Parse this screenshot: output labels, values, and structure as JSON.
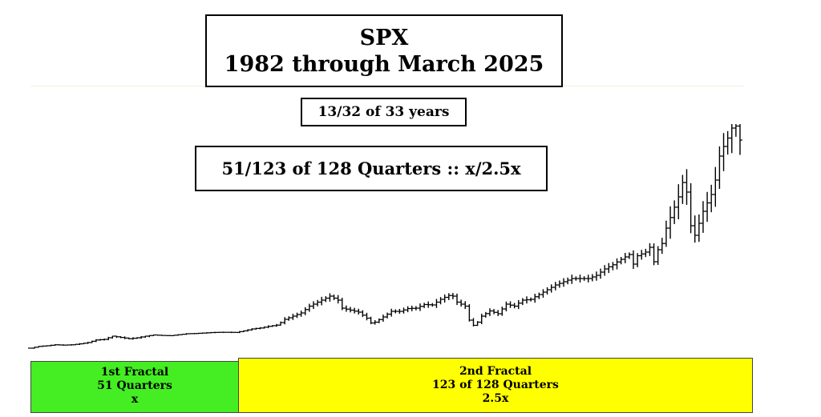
{
  "title": {
    "line1": "SPX",
    "line2": "1982  through March  2025"
  },
  "years_label": "13/32 of 33 years",
  "quarters_label": "51/123 of 128 Quarters :: x/2.5x",
  "fractal_1": {
    "line1": "1st Fractal",
    "line2": "51 Quarters",
    "line3": "x",
    "color": "#44ee22"
  },
  "fractal_2": {
    "line1": "2nd Fractal",
    "line2": "123 of 128 Quarters",
    "line3": "2.5x",
    "color": "#ffff00"
  },
  "chart_data": {
    "type": "ohlc",
    "title": "SPX",
    "subtitle": "1982  through March  2025",
    "xlabel": "",
    "ylabel": "",
    "x_range": [
      1982,
      2025.25
    ],
    "grid": false,
    "legend": "none",
    "bar_color": "#000000",
    "series": [
      {
        "values": [
          [
            1982.0,
            112
          ],
          [
            1982.5,
            140
          ],
          [
            1983.0,
            150
          ],
          [
            1983.5,
            165
          ],
          [
            1984.0,
            160
          ],
          [
            1984.5,
            165
          ],
          [
            1985.0,
            180
          ],
          [
            1985.5,
            200
          ],
          [
            1986.0,
            240
          ],
          [
            1986.5,
            250
          ],
          [
            1987.0,
            300
          ],
          [
            1987.5,
            280
          ],
          [
            1988.0,
            260
          ],
          [
            1988.5,
            275
          ],
          [
            1989.0,
            300
          ],
          [
            1989.5,
            350
          ],
          [
            1990.0,
            330
          ],
          [
            1990.5,
            320
          ],
          [
            1991.0,
            360
          ],
          [
            1991.5,
            400
          ],
          [
            1992.0,
            410
          ],
          [
            1992.5,
            430
          ],
          [
            1993.0,
            450
          ],
          [
            1993.5,
            460
          ],
          [
            1994.0,
            460
          ],
          [
            1994.5,
            455
          ],
          [
            1995.0,
            520
          ],
          [
            1995.5,
            600
          ],
          [
            1996.0,
            640
          ],
          [
            1996.5,
            710
          ],
          [
            1997.0,
            760
          ],
          [
            1997.5,
            920
          ],
          [
            1998.0,
            1000
          ],
          [
            1998.5,
            1080
          ],
          [
            1999.0,
            1250
          ],
          [
            1999.5,
            1350
          ],
          [
            2000.0,
            1450
          ],
          [
            2000.25,
            1500
          ],
          [
            2000.5,
            1450
          ],
          [
            2000.75,
            1400
          ],
          [
            2001.0,
            1200
          ],
          [
            2001.5,
            1150
          ],
          [
            2002.0,
            1100
          ],
          [
            2002.5,
            950
          ],
          [
            2002.75,
            830
          ],
          [
            2003.0,
            850
          ],
          [
            2003.5,
            980
          ],
          [
            2004.0,
            1120
          ],
          [
            2004.5,
            1120
          ],
          [
            2005.0,
            1190
          ],
          [
            2005.5,
            1200
          ],
          [
            2006.0,
            1290
          ],
          [
            2006.5,
            1280
          ],
          [
            2007.0,
            1420
          ],
          [
            2007.5,
            1520
          ],
          [
            2007.75,
            1500
          ],
          [
            2008.0,
            1350
          ],
          [
            2008.5,
            1250
          ],
          [
            2008.75,
            900
          ],
          [
            2009.0,
            750
          ],
          [
            2009.25,
            850
          ],
          [
            2009.5,
            1000
          ],
          [
            2010.0,
            1130
          ],
          [
            2010.5,
            1060
          ],
          [
            2011.0,
            1300
          ],
          [
            2011.5,
            1250
          ],
          [
            2012.0,
            1400
          ],
          [
            2012.5,
            1420
          ],
          [
            2013.0,
            1550
          ],
          [
            2013.5,
            1700
          ],
          [
            2014.0,
            1850
          ],
          [
            2014.5,
            1950
          ],
          [
            2015.0,
            2050
          ],
          [
            2015.5,
            2050
          ],
          [
            2016.0,
            2050
          ],
          [
            2016.5,
            2150
          ],
          [
            2017.0,
            2350
          ],
          [
            2017.5,
            2480
          ],
          [
            2018.0,
            2700
          ],
          [
            2018.5,
            2900
          ],
          [
            2018.75,
            2500
          ],
          [
            2019.0,
            2850
          ],
          [
            2019.5,
            3000
          ],
          [
            2019.75,
            3200
          ],
          [
            2020.0,
            2600
          ],
          [
            2020.25,
            3100
          ],
          [
            2020.5,
            3360
          ],
          [
            2020.75,
            3750
          ],
          [
            2021.0,
            3970
          ],
          [
            2021.5,
            4400
          ],
          [
            2021.75,
            4700
          ],
          [
            2022.0,
            4500
          ],
          [
            2022.25,
            3800
          ],
          [
            2022.5,
            3600
          ],
          [
            2022.75,
            3850
          ],
          [
            2023.0,
            4100
          ],
          [
            2023.5,
            4450
          ],
          [
            2023.75,
            4750
          ],
          [
            2024.0,
            5250
          ],
          [
            2024.5,
            5650
          ],
          [
            2024.75,
            5900
          ],
          [
            2025.0,
            5950
          ],
          [
            2025.25,
            5600
          ]
        ]
      }
    ]
  }
}
